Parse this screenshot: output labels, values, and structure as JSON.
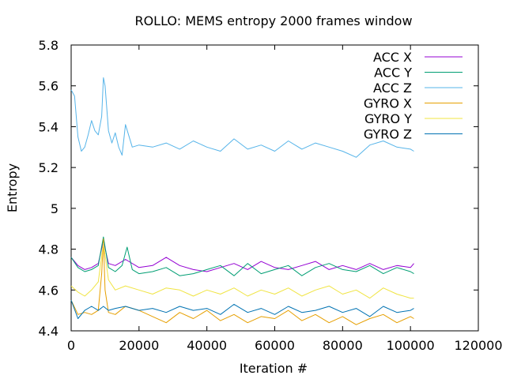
{
  "chart_data": {
    "type": "line",
    "title": "ROLLO: MEMS entropy 2000 frames window",
    "xlabel": "Iteration #",
    "ylabel": "Entropy",
    "xlim": [
      0,
      120000
    ],
    "ylim": [
      4.4,
      5.8
    ],
    "x_ticks": [
      "0",
      "20000",
      "40000",
      "60000",
      "80000",
      "100000",
      "120000"
    ],
    "y_ticks": [
      "4.4",
      "4.6",
      "4.8",
      "5",
      "5.2",
      "5.4",
      "5.6",
      "5.8"
    ],
    "grid": false,
    "legend_position": "top-right",
    "series": [
      {
        "name": "ACC X",
        "color": "#9400d3",
        "x": [
          0,
          2000,
          4000,
          6000,
          8000,
          9500,
          11000,
          13000,
          16000,
          20000,
          24000,
          28000,
          32000,
          36000,
          40000,
          44000,
          48000,
          52000,
          56000,
          60000,
          64000,
          68000,
          72000,
          76000,
          80000,
          84000,
          88000,
          92000,
          96000,
          100000,
          101000
        ],
        "values": [
          4.76,
          4.72,
          4.7,
          4.71,
          4.73,
          4.84,
          4.73,
          4.72,
          4.75,
          4.71,
          4.72,
          4.76,
          4.72,
          4.7,
          4.69,
          4.71,
          4.73,
          4.7,
          4.74,
          4.71,
          4.7,
          4.72,
          4.74,
          4.7,
          4.72,
          4.7,
          4.73,
          4.7,
          4.72,
          4.71,
          4.73
        ]
      },
      {
        "name": "ACC Y",
        "color": "#009e73",
        "x": [
          0,
          2000,
          4000,
          6000,
          8000,
          9500,
          11000,
          13000,
          15000,
          16500,
          18000,
          20000,
          24000,
          28000,
          32000,
          36000,
          40000,
          44000,
          48000,
          52000,
          56000,
          60000,
          64000,
          68000,
          72000,
          76000,
          80000,
          84000,
          88000,
          92000,
          96000,
          100000,
          101000
        ],
        "values": [
          4.76,
          4.71,
          4.69,
          4.7,
          4.72,
          4.86,
          4.71,
          4.69,
          4.72,
          4.81,
          4.7,
          4.68,
          4.69,
          4.71,
          4.67,
          4.68,
          4.7,
          4.72,
          4.67,
          4.73,
          4.68,
          4.7,
          4.72,
          4.67,
          4.71,
          4.73,
          4.7,
          4.69,
          4.72,
          4.68,
          4.71,
          4.69,
          4.68
        ]
      },
      {
        "name": "ACC Z",
        "color": "#56b4e9",
        "x": [
          0,
          1000,
          2000,
          3000,
          4000,
          5000,
          6000,
          7000,
          8000,
          9000,
          9500,
          10000,
          11000,
          12000,
          13000,
          14000,
          15000,
          16000,
          18000,
          20000,
          24000,
          28000,
          32000,
          36000,
          40000,
          44000,
          48000,
          52000,
          56000,
          60000,
          64000,
          68000,
          72000,
          76000,
          80000,
          84000,
          88000,
          92000,
          96000,
          100000,
          101000
        ],
        "values": [
          5.58,
          5.55,
          5.35,
          5.28,
          5.3,
          5.36,
          5.43,
          5.38,
          5.36,
          5.45,
          5.64,
          5.6,
          5.38,
          5.32,
          5.37,
          5.3,
          5.26,
          5.41,
          5.3,
          5.31,
          5.3,
          5.32,
          5.29,
          5.33,
          5.3,
          5.28,
          5.34,
          5.29,
          5.31,
          5.28,
          5.33,
          5.29,
          5.32,
          5.3,
          5.28,
          5.25,
          5.31,
          5.33,
          5.3,
          5.29,
          5.28
        ]
      },
      {
        "name": "GYRO X",
        "color": "#e69f00",
        "x": [
          0,
          2000,
          4000,
          6000,
          8000,
          9000,
          9500,
          10000,
          11000,
          13000,
          16000,
          20000,
          24000,
          28000,
          32000,
          36000,
          40000,
          44000,
          48000,
          52000,
          56000,
          60000,
          64000,
          68000,
          72000,
          76000,
          80000,
          84000,
          88000,
          92000,
          96000,
          100000,
          101000
        ],
        "values": [
          4.55,
          4.48,
          4.49,
          4.48,
          4.5,
          4.68,
          4.85,
          4.6,
          4.49,
          4.48,
          4.52,
          4.5,
          4.47,
          4.44,
          4.49,
          4.46,
          4.5,
          4.45,
          4.48,
          4.44,
          4.47,
          4.46,
          4.5,
          4.45,
          4.48,
          4.44,
          4.47,
          4.43,
          4.46,
          4.48,
          4.44,
          4.47,
          4.46
        ]
      },
      {
        "name": "GYRO Y",
        "color": "#f0e442",
        "x": [
          0,
          2000,
          4000,
          6000,
          8000,
          9500,
          11000,
          13000,
          16000,
          20000,
          24000,
          28000,
          32000,
          36000,
          40000,
          44000,
          48000,
          52000,
          56000,
          60000,
          64000,
          68000,
          72000,
          76000,
          80000,
          84000,
          88000,
          92000,
          96000,
          100000,
          101000
        ],
        "values": [
          4.62,
          4.59,
          4.57,
          4.6,
          4.64,
          4.83,
          4.65,
          4.6,
          4.62,
          4.6,
          4.58,
          4.61,
          4.6,
          4.57,
          4.6,
          4.58,
          4.61,
          4.57,
          4.6,
          4.58,
          4.61,
          4.57,
          4.6,
          4.62,
          4.58,
          4.6,
          4.56,
          4.61,
          4.58,
          4.56,
          4.56
        ]
      },
      {
        "name": "GYRO Z",
        "color": "#0072b2",
        "x": [
          0,
          2000,
          4000,
          6000,
          8000,
          9500,
          11000,
          13000,
          16000,
          20000,
          24000,
          28000,
          32000,
          36000,
          40000,
          44000,
          48000,
          52000,
          56000,
          60000,
          64000,
          68000,
          72000,
          76000,
          80000,
          84000,
          88000,
          92000,
          96000,
          100000,
          101000
        ],
        "values": [
          4.55,
          4.46,
          4.5,
          4.52,
          4.5,
          4.52,
          4.5,
          4.51,
          4.52,
          4.5,
          4.51,
          4.49,
          4.52,
          4.5,
          4.51,
          4.48,
          4.53,
          4.49,
          4.51,
          4.48,
          4.52,
          4.49,
          4.5,
          4.52,
          4.49,
          4.51,
          4.47,
          4.52,
          4.49,
          4.5,
          4.51
        ]
      }
    ]
  }
}
